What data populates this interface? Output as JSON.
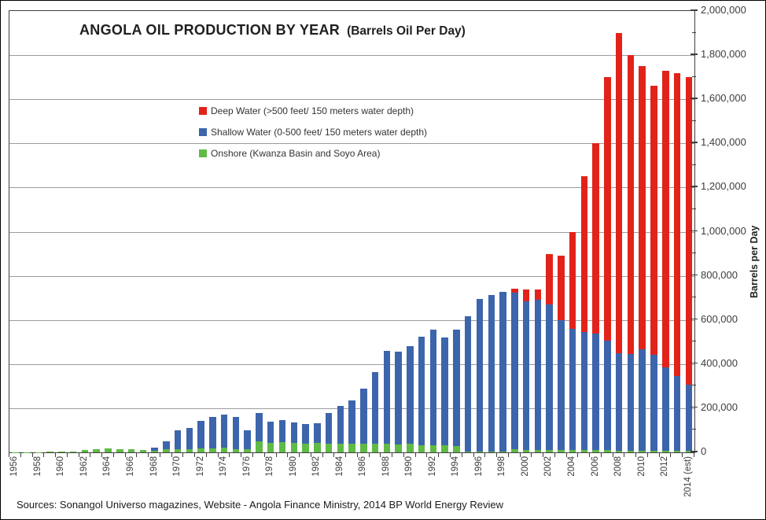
{
  "page": {
    "title_main": "ANGOLA OIL PRODUCTION BY YEAR",
    "title_sub": "(Barrels Oil Per Day)",
    "footer": "Sources: Sonangol Universo magazines, Website - Angola Finance Ministry, 2014 BP World Energy Review"
  },
  "colors": {
    "deep_water": "#e2231a",
    "shallow_water": "#3d65ac",
    "onshore": "#5fba46",
    "gridline": "#9c9c9c",
    "axis": "#3f3f3f"
  },
  "chart_data": {
    "type": "bar",
    "stacked": true,
    "title": "ANGOLA OIL PRODUCTION BY YEAR (Barrels Oil Per Day)",
    "xlabel": "",
    "ylabel": "Barrels per Day",
    "ylim": [
      0,
      2000000
    ],
    "ytick_interval": 200000,
    "ytick_labels": [
      "0",
      "200,000",
      "400,000",
      "600,000",
      "800,000",
      "1,000,000",
      "1,200,000",
      "1,400,000",
      "1,600,000",
      "1,800,000",
      "2,000,000"
    ],
    "grid": "horizontal",
    "legend_position": "inside-upper-left",
    "categories": [
      1956,
      1957,
      1958,
      1959,
      1960,
      1961,
      1962,
      1963,
      1964,
      1965,
      1966,
      1967,
      1968,
      1969,
      1970,
      1971,
      1972,
      1973,
      1974,
      1975,
      1976,
      1977,
      1978,
      1979,
      1980,
      1981,
      1982,
      1983,
      1984,
      1985,
      1986,
      1987,
      1988,
      1989,
      1990,
      1991,
      1992,
      1993,
      1994,
      1995,
      1996,
      1997,
      1998,
      1999,
      2000,
      2001,
      2002,
      2003,
      2004,
      2005,
      2006,
      2007,
      2008,
      2009,
      2010,
      2011,
      2012,
      2013,
      2014
    ],
    "xtick_labels": [
      "1956",
      "1958",
      "1960",
      "1962",
      "1964",
      "1966",
      "1968",
      "1970",
      "1972",
      "1974",
      "1976",
      "1978",
      "1980",
      "1982",
      "1984",
      "1986",
      "1988",
      "1990",
      "1992",
      "1994",
      "1996",
      "1998",
      "2000",
      "2002",
      "2004",
      "2006",
      "2008",
      "2010",
      "2012",
      "2014 (est)"
    ],
    "series": [
      {
        "name": "Deep Water (>500 feet/ 150 meters water depth)",
        "key": "deep-water",
        "color": "#e2231a",
        "values": [
          0,
          0,
          0,
          0,
          0,
          0,
          0,
          0,
          0,
          0,
          0,
          0,
          0,
          0,
          0,
          0,
          0,
          0,
          0,
          0,
          0,
          0,
          0,
          0,
          0,
          0,
          0,
          0,
          0,
          0,
          0,
          0,
          0,
          0,
          0,
          0,
          0,
          0,
          0,
          0,
          0,
          0,
          0,
          18000,
          52000,
          46000,
          228000,
          290000,
          439000,
          706000,
          863000,
          1195000,
          1452000,
          1354000,
          1284000,
          1217000,
          1344000,
          1375000,
          1392000
        ]
      },
      {
        "name": "Shallow Water (0-500 feet/ 150 meters water depth)",
        "key": "shallow-water",
        "color": "#3d65ac",
        "values": [
          0,
          0,
          0,
          0,
          0,
          0,
          0,
          0,
          0,
          0,
          0,
          0,
          12000,
          37000,
          85000,
          97000,
          125000,
          141000,
          152000,
          146000,
          85000,
          130000,
          95000,
          98000,
          92000,
          90000,
          89000,
          140000,
          172000,
          195000,
          248000,
          327000,
          422000,
          422000,
          442000,
          490000,
          524000,
          489000,
          528000,
          612000,
          690000,
          708000,
          724000,
          710000,
          674000,
          680000,
          660000,
          590000,
          551000,
          534000,
          527000,
          495000,
          440000,
          438000,
          458000,
          435000,
          378000,
          337000,
          300000
        ]
      },
      {
        "name": "Onshore (Kwanza Basin and Soyo Area)",
        "key": "onshore",
        "color": "#5fba46",
        "values": [
          1000,
          1000,
          1500,
          2000,
          2500,
          4000,
          9000,
          15000,
          18000,
          13000,
          13000,
          10000,
          8000,
          13000,
          15000,
          15000,
          17000,
          19000,
          20000,
          14000,
          15000,
          50000,
          44000,
          47000,
          44000,
          40000,
          43000,
          40000,
          38000,
          40000,
          40000,
          38000,
          38000,
          36000,
          38000,
          33000,
          33000,
          31000,
          27000,
          5000,
          5000,
          5000,
          5000,
          14000,
          12000,
          12000,
          12000,
          10000,
          10000,
          10000,
          10000,
          10000,
          8000,
          8000,
          8000,
          8000,
          8000,
          8000,
          8000
        ]
      }
    ]
  }
}
